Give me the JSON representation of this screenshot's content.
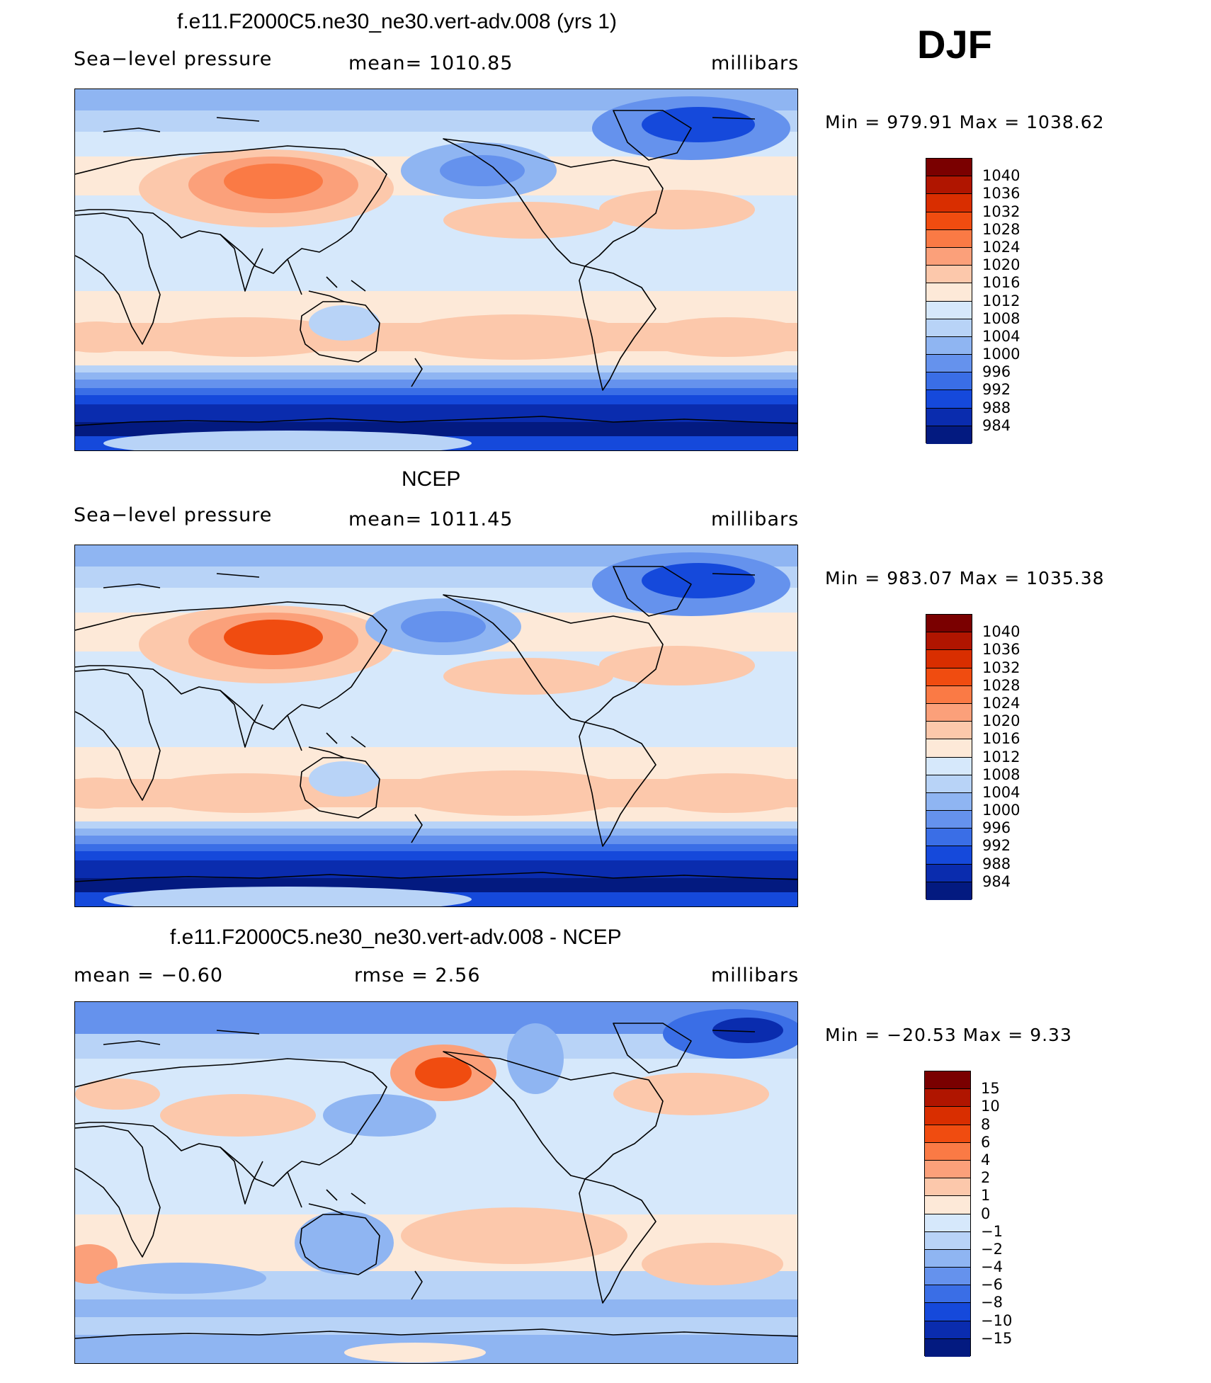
{
  "season": "DJF",
  "panels": [
    {
      "title": "f.e11.F2000C5.ne30_ne30.vert-adv.008 (yrs 1)",
      "left_text": "Sea−level pressure",
      "center_text": "mean=  1010.85",
      "right_text": "millibars",
      "minmax": "Min  =  979.91  Max  =  1038.62",
      "colorbar_labels": [
        "1040",
        "1036",
        "1032",
        "1028",
        "1024",
        "1020",
        "1016",
        "1012",
        "1008",
        "1004",
        "1000",
        "996",
        "992",
        "988",
        "984"
      ],
      "field": "model"
    },
    {
      "title": "NCEP",
      "left_text": "Sea−level pressure",
      "center_text": "mean=  1011.45",
      "right_text": "millibars",
      "minmax": "Min  =  983.07  Max  =  1035.38",
      "colorbar_labels": [
        "1040",
        "1036",
        "1032",
        "1028",
        "1024",
        "1020",
        "1016",
        "1012",
        "1008",
        "1004",
        "1000",
        "996",
        "992",
        "988",
        "984"
      ],
      "field": "obs"
    },
    {
      "title": "f.e11.F2000C5.ne30_ne30.vert-adv.008 - NCEP",
      "left_text": "mean  =    −0.60",
      "center_text": "rmse  =     2.56",
      "right_text": "millibars",
      "minmax": "Min  =  −20.53  Max  =      9.33",
      "colorbar_labels": [
        "15",
        "10",
        "8",
        "6",
        "4",
        "2",
        "1",
        "0",
        "−1",
        "−2",
        "−4",
        "−6",
        "−8",
        "−10",
        "−15"
      ],
      "field": "diff"
    }
  ],
  "colors": {
    "palette": [
      "#7a0000",
      "#b01500",
      "#d92e00",
      "#f04c10",
      "#fa7a45",
      "#fba07a",
      "#fcc8ab",
      "#fde9d8",
      "#d6e8fb",
      "#b8d3f7",
      "#8fb5f2",
      "#6592ed",
      "#3a6ee6",
      "#1549db",
      "#0a2cae",
      "#031a80"
    ]
  },
  "chart_data": {
    "type": "heatmap",
    "description_units": "millibars",
    "maps": [
      {
        "name": "f.e11.F2000C5.ne30_ne30.vert-adv.008 (yrs 1)",
        "mean": 1010.85,
        "min": 979.91,
        "max": 1038.62,
        "levels": [
          984,
          988,
          992,
          996,
          1000,
          1004,
          1008,
          1012,
          1016,
          1020,
          1024,
          1028,
          1032,
          1036,
          1040
        ]
      },
      {
        "name": "NCEP",
        "mean": 1011.45,
        "min": 983.07,
        "max": 1035.38,
        "levels": [
          984,
          988,
          992,
          996,
          1000,
          1004,
          1008,
          1012,
          1016,
          1020,
          1024,
          1028,
          1032,
          1036,
          1040
        ]
      },
      {
        "name": "f.e11.F2000C5.ne30_ne30.vert-adv.008 - NCEP",
        "mean": -0.6,
        "rmse": 2.56,
        "min": -20.53,
        "max": 9.33,
        "levels": [
          -15,
          -10,
          -8,
          -6,
          -4,
          -2,
          -1,
          0,
          1,
          2,
          4,
          6,
          8,
          10,
          15
        ]
      }
    ]
  }
}
